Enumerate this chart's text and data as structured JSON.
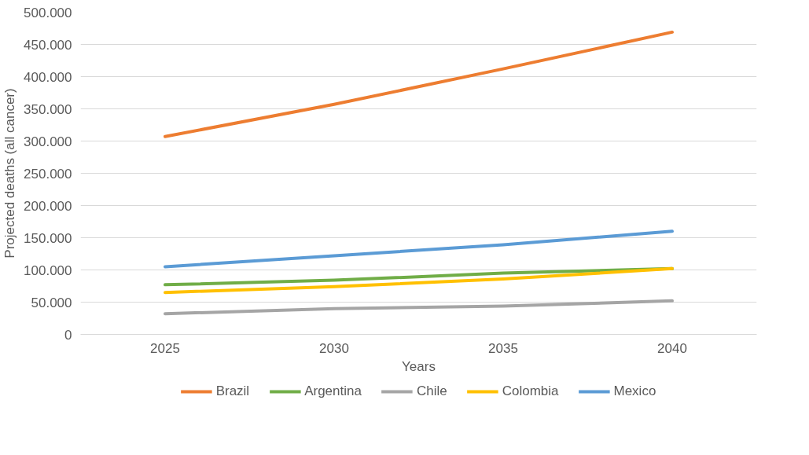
{
  "chart_data": {
    "type": "line",
    "xlabel": "Years",
    "ylabel": "Projected deaths (all cancer)",
    "categories": [
      "2025",
      "2030",
      "2035",
      "2040"
    ],
    "series": [
      {
        "name": "Brazil",
        "color": "#ed7d31",
        "values": [
          307000,
          357000,
          412000,
          469000
        ]
      },
      {
        "name": "Argentina",
        "color": "#70ad47",
        "values": [
          77000,
          84000,
          95000,
          102000
        ]
      },
      {
        "name": "Chile",
        "color": "#a5a5a5",
        "values": [
          32000,
          40000,
          44000,
          52000
        ]
      },
      {
        "name": "Colombia",
        "color": "#ffc000",
        "values": [
          65000,
          74000,
          86000,
          102000
        ]
      },
      {
        "name": "Mexico",
        "color": "#5b9bd5",
        "values": [
          105000,
          122000,
          139000,
          160000
        ]
      }
    ],
    "ylim": [
      0,
      500000
    ],
    "yticks": [
      0,
      {
        "value": 50000,
        "label": "50.000"
      },
      {
        "value": 100000,
        "label": "100.000"
      },
      {
        "value": 150000,
        "label": "150.000"
      },
      {
        "value": 200000,
        "label": "200.000"
      },
      {
        "value": 250000,
        "label": "250.000"
      },
      {
        "value": 300000,
        "label": "300.000"
      },
      {
        "value": 350000,
        "label": "350.000"
      },
      {
        "value": 400000,
        "label": "400.000"
      },
      {
        "value": 450000,
        "label": "450.000"
      },
      {
        "value": 500000,
        "label": "500.000"
      }
    ],
    "grid": "y",
    "legend": "bottom",
    "marker": "none",
    "line_style": "solid"
  }
}
